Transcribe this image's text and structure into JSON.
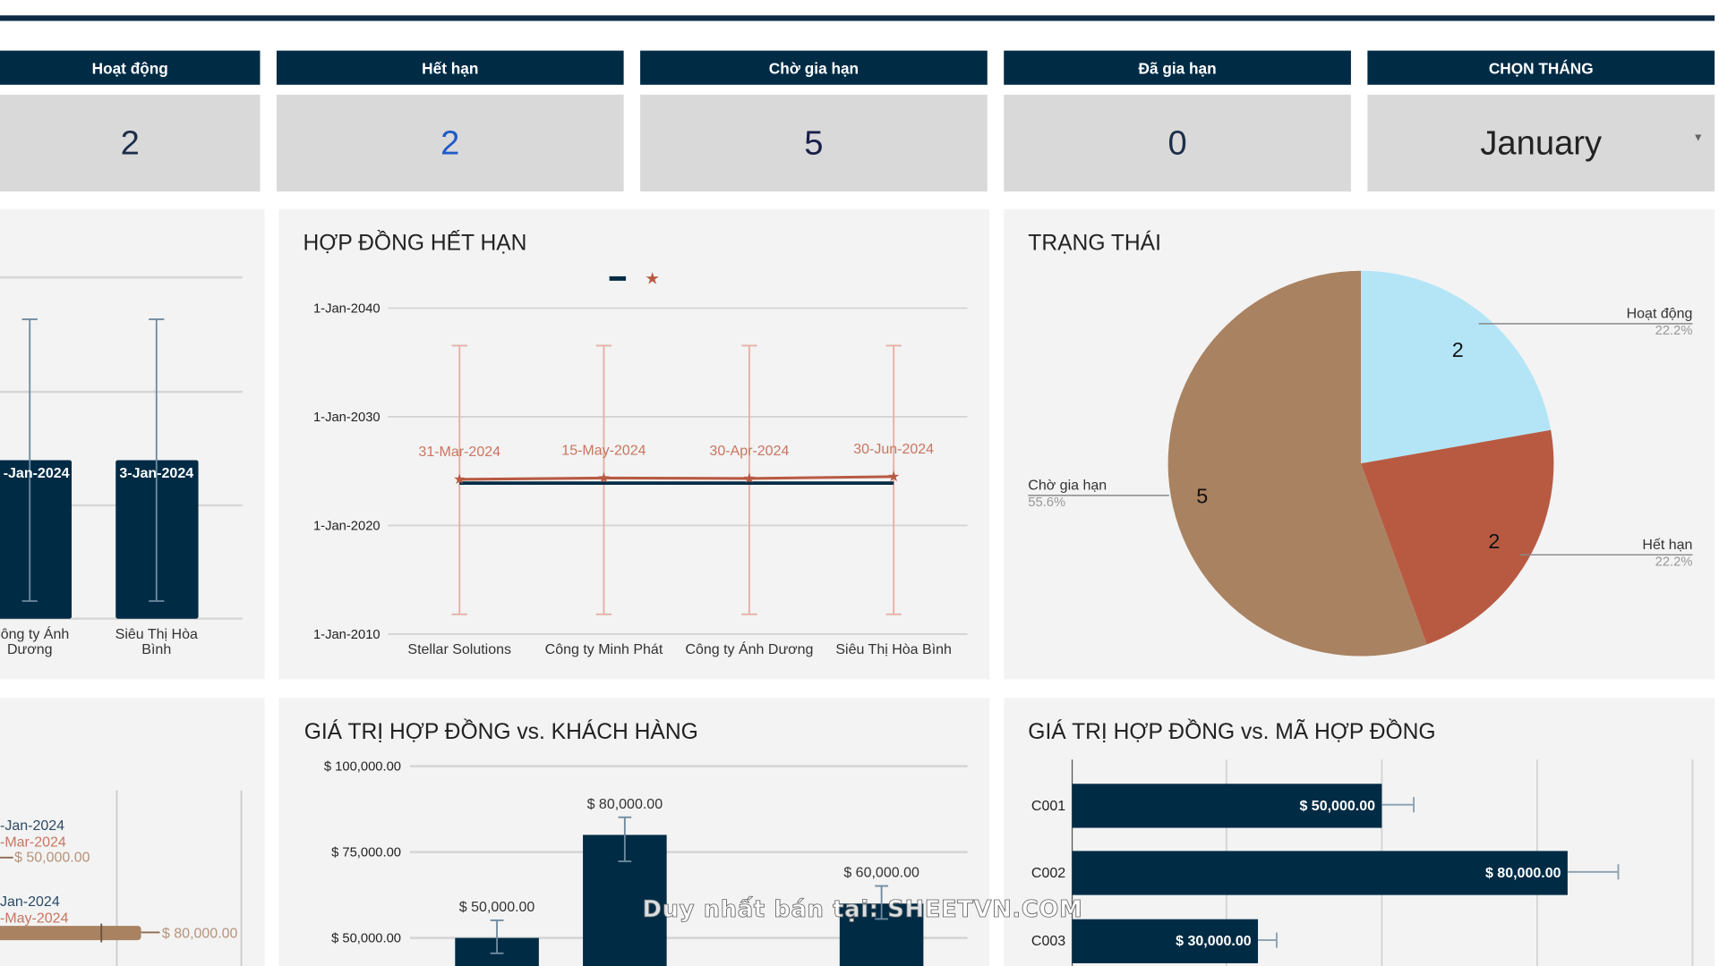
{
  "kpis": [
    {
      "label": "Hoạt động",
      "value": "2",
      "color": "#1c2e4a"
    },
    {
      "label": "Hết hạn",
      "value": "2",
      "color": "#1f5bc8"
    },
    {
      "label": "Chờ gia hạn",
      "value": "5",
      "color": "#1a1f4a"
    },
    {
      "label": "Đã gia hạn",
      "value": "0",
      "color": "#1c2e4a"
    }
  ],
  "month_picker": {
    "label": "CHỌN THÁNG",
    "value": "January"
  },
  "watermark": "Duy nhất bán tại: SHEETVN.COM",
  "colors": {
    "navy": "#002b45",
    "red": "#b85a42",
    "tan": "#a98262",
    "light_blue": "#b3e5f7"
  },
  "chart_data": [
    {
      "type": "bar",
      "categories": [
        "Công ty Ánh Dương",
        "Siêu Thị Hòa Bình"
      ],
      "data_labels": [
        "-Jan-2024",
        "3-Jan-2024"
      ],
      "error_bars": true,
      "grid": true
    },
    {
      "type": "line",
      "title": "HỢP ĐỒNG HẾT HẠN",
      "categories": [
        "Stellar Solutions",
        "Công ty Minh Phát",
        "Công ty Ánh Dương",
        "Siêu Thị Hòa Bình"
      ],
      "y_ticks": [
        "1-Jan-2010",
        "1-Jan-2020",
        "1-Jan-2030",
        "1-Jan-2040"
      ],
      "ylim": [
        "2010-01-01",
        "2040-01-01"
      ],
      "series": [
        {
          "color": "#002b45",
          "marker": "none",
          "values": [
            "2024-01-01",
            "2024-01-01",
            "2024-01-01",
            "2024-01-01"
          ]
        },
        {
          "color": "#b85a42",
          "marker": "star",
          "values": [
            "2024-03-31",
            "2024-05-15",
            "2024-04-30",
            "2024-06-30"
          ],
          "data_labels": [
            "31-Mar-2024",
            "15-May-2024",
            "30-Apr-2024",
            "30-Jun-2024"
          ]
        }
      ],
      "legend": "top",
      "error_bars": true,
      "grid": true
    },
    {
      "type": "pie",
      "title": "TRẠNG THÁI",
      "slices": [
        {
          "label": "Hoạt động",
          "value": 2,
          "percent": "22.2%",
          "color": "#b3e5f7"
        },
        {
          "label": "Hết hạn",
          "value": 2,
          "percent": "22.2%",
          "color": "#b85a42"
        },
        {
          "label": "Chờ gia hạn",
          "value": 5,
          "percent": "55.6%",
          "color": "#a98262"
        }
      ]
    },
    {
      "type": "bar",
      "orientation": "horizontal",
      "items": [
        {
          "labels": [
            "-Jan-2024",
            "-Mar-2024"
          ],
          "value_label": "$ 50,000.00"
        },
        {
          "labels": [
            "Jan-2024",
            "-May-2024"
          ],
          "value_label": "$ 80,000.00"
        }
      ],
      "grid": true
    },
    {
      "type": "bar",
      "title": "GIÁ TRỊ HỢP ĐỒNG vs. KHÁCH HÀNG",
      "y_ticks": [
        "$ 50,000.00",
        "$ 75,000.00",
        "$ 100,000.00"
      ],
      "ylim": [
        50000,
        100000
      ],
      "values": [
        50000,
        80000,
        null,
        60000
      ],
      "data_labels": [
        "$ 50,000.00",
        "$ 80,000.00",
        "",
        "$ 60,000.00"
      ],
      "error_bars": true,
      "grid": true
    },
    {
      "type": "bar",
      "orientation": "horizontal",
      "title": "GIÁ TRỊ HỢP ĐỒNG vs. MÃ HỢP ĐỒNG",
      "categories": [
        "C001",
        "C002",
        "C003"
      ],
      "values": [
        50000,
        80000,
        30000
      ],
      "data_labels": [
        "$ 50,000.00",
        "$ 80,000.00",
        "$ 30,000.00"
      ],
      "error_bars": true,
      "grid": true
    }
  ]
}
